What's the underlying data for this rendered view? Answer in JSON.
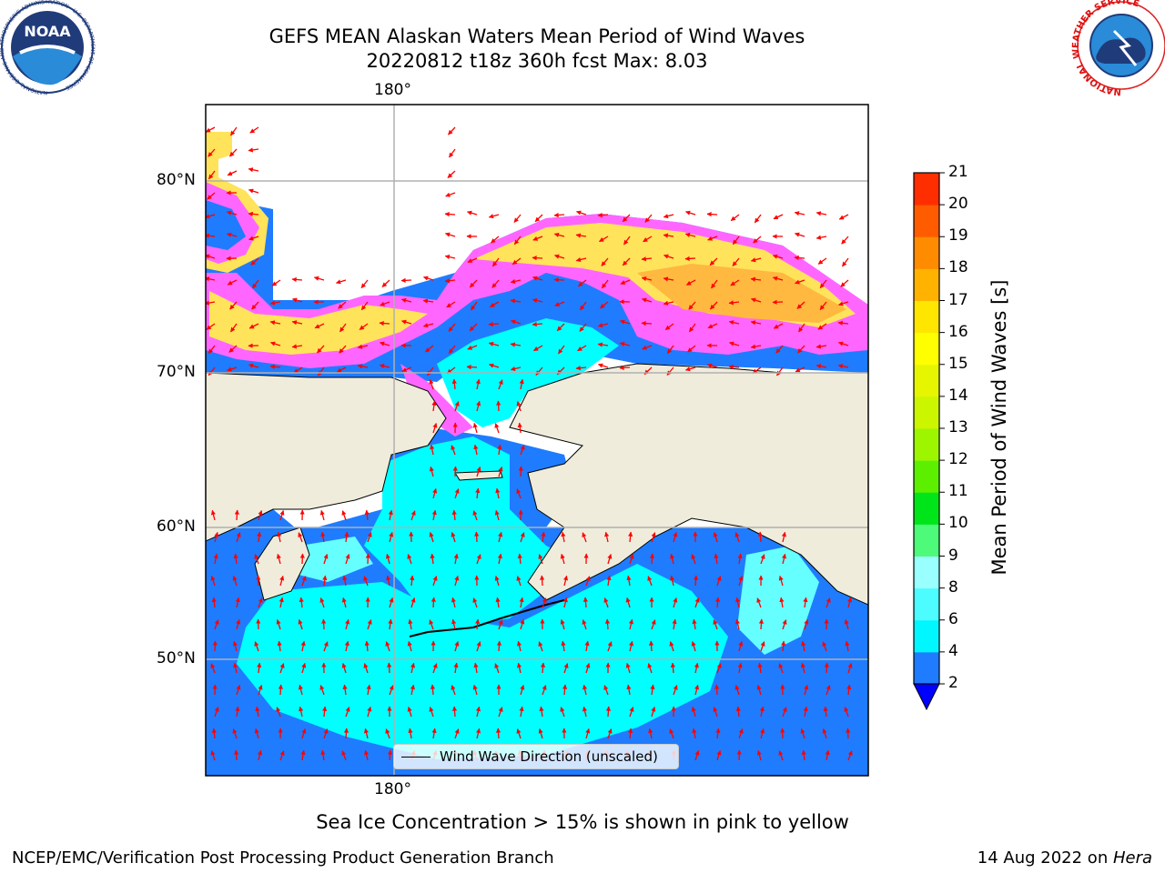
{
  "header": {
    "title_line1": "GEFS MEAN Alaskan Waters Mean Period of Wind Waves",
    "title_line2": "20220812 t18z 360h fcst   Max: 8.03",
    "noaa_logo_text": "NOAA",
    "noaa_logo_ring": "NATIONAL OCEANIC AND ATMOSPHERIC ADMINISTRATION · U.S. DEPARTMENT OF COMMERCE",
    "nws_logo_ring": "NATIONAL WEATHER SERVICE"
  },
  "map": {
    "lon_label_top": "180°",
    "lon_label_bottom": "180°",
    "lat_labels": [
      "80°N",
      "70°N",
      "60°N",
      "50°N"
    ],
    "legend_text": "Wind Wave Direction (unscaled)",
    "colors": {
      "land": "#efecdc",
      "ice_pink": "#ff66ff",
      "ice_yellow": "#ffe35a",
      "wave_blue": "#1f7cff",
      "wave_cyan": "#00ffff",
      "wave_lightcyan": "#66ffff",
      "arrow": "#ff0000",
      "grid": "#b0b0b0"
    }
  },
  "colorbar": {
    "title": "Mean Period of Wind Waves [s]",
    "ticks": [
      "2",
      "4",
      "6",
      "8",
      "9",
      "10",
      "11",
      "12",
      "13",
      "14",
      "15",
      "16",
      "17",
      "18",
      "19",
      "20",
      "21"
    ],
    "colors": [
      "#1f7cff",
      "#00f7ff",
      "#4dfcff",
      "#99ffff",
      "#4dfa7a",
      "#00e51a",
      "#5cf000",
      "#9ef500",
      "#ccf500",
      "#e6f500",
      "#ffff00",
      "#ffe600",
      "#ffb300",
      "#ff8c00",
      "#ff5c00",
      "#ff2e00",
      "#ff0000"
    ],
    "under_color": "#0000ff"
  },
  "footer": {
    "caption": "Sea Ice Concentration > 15% is shown in pink to yellow",
    "left": "NCEP/EMC/Verification Post Processing Product Generation Branch",
    "right_date": "14 Aug 2022 on ",
    "right_host": "Hera"
  }
}
